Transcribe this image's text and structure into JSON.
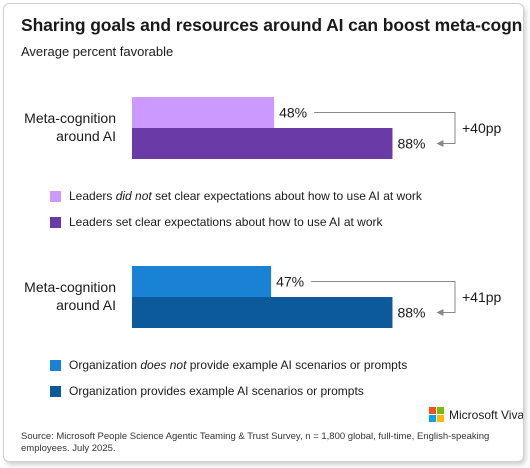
{
  "title": "Sharing goals and resources around AI can boost meta-cognition",
  "subtitle": "Average percent favorable",
  "colors": {
    "light_purple": "#cc99ff",
    "dark_purple": "#6a3aa6",
    "light_blue": "#1a82d4",
    "dark_blue": "#0c5a9c",
    "bracket": "#888888",
    "ms_red": "#f25022",
    "ms_green": "#7fba00",
    "ms_blue": "#00a4ef",
    "ms_yellow": "#ffb900"
  },
  "chart_data": [
    {
      "type": "bar",
      "orientation": "horizontal",
      "category": "Meta-cognition around AI",
      "series": [
        {
          "name": "Leaders did not set clear expectations about how to use AI at work",
          "value": 48,
          "label": "48%",
          "color": "#cc99ff"
        },
        {
          "name": "Leaders set clear expectations about how to use AI at work",
          "value": 88,
          "label": "88%",
          "color": "#6a3aa6"
        }
      ],
      "annotation": "+40pp",
      "xlim": [
        0,
        100
      ]
    },
    {
      "type": "bar",
      "orientation": "horizontal",
      "category": "Meta-cognition around AI",
      "series": [
        {
          "name": "Organization does not provide example AI scenarios or prompts",
          "value": 47,
          "label": "47%",
          "color": "#1a82d4"
        },
        {
          "name": "Organization provides example AI scenarios or prompts",
          "value": 88,
          "label": "88%",
          "color": "#0c5a9c"
        }
      ],
      "annotation": "+41pp",
      "xlim": [
        0,
        100
      ]
    }
  ],
  "category_label_lines": [
    "Meta-cognition",
    "around AI"
  ],
  "legend1": {
    "item1_pre": "Leaders ",
    "item1_em": "did not",
    "item1_post": " set clear expectations about how to use AI at work",
    "item2": "Leaders set clear expectations about how to use AI at work"
  },
  "legend2": {
    "item1_pre": "Organization ",
    "item1_em": "does not",
    "item1_post": " provide example AI scenarios or prompts",
    "item2": "Organization provides example AI scenarios or prompts"
  },
  "brand": "Microsoft Viva",
  "source": "Source: Microsoft People Science Agentic Teaming & Trust Survey, n = 1,800 global, full-time, English-speaking employees. July 2025."
}
